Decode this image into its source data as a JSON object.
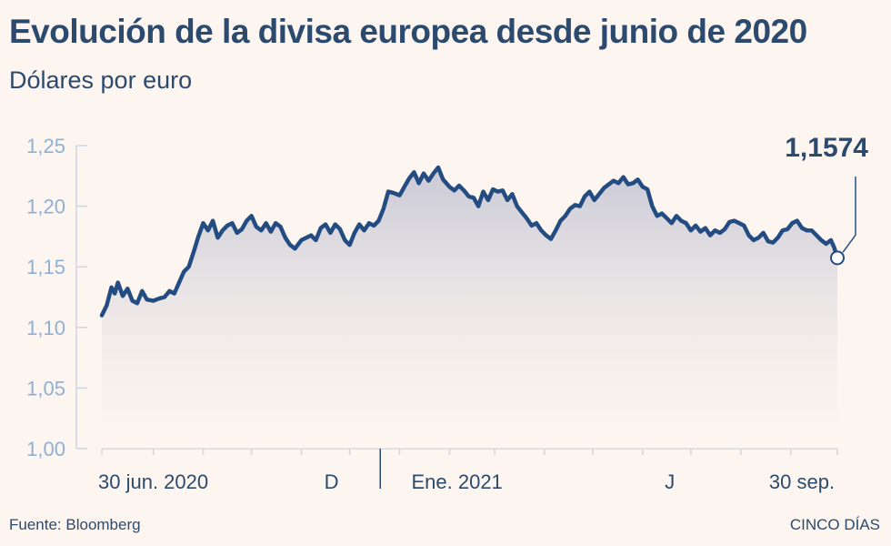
{
  "header": {
    "title": "Evolución de la divisa europea desde junio de 2020",
    "subtitle": "Dólares por euro"
  },
  "footer": {
    "source": "Fuente: Bloomberg",
    "brand": "CINCO DÍAS"
  },
  "colors": {
    "line": "#234d82",
    "axis_text": "#8fb0d5",
    "text": "#2c4a6e",
    "background": "#fdf5ef"
  },
  "chart_data": {
    "type": "area",
    "title": "Evolución de la divisa europea desde junio de 2020",
    "ylabel": "Dólares por euro",
    "ylim": [
      1.0,
      1.25
    ],
    "yticks": [
      "1,25",
      "1,20",
      "1,15",
      "1,10",
      "1,05",
      "1,00"
    ],
    "ytick_values": [
      1.25,
      1.2,
      1.15,
      1.1,
      1.05,
      1.0
    ],
    "x_range": [
      "2020-06-30",
      "2021-09-30"
    ],
    "xtick_labels": [
      {
        "date": "2020-06-30",
        "label": "30 jun. 2020"
      },
      {
        "date": "2020-12-01",
        "label": "D"
      },
      {
        "date": "2021-01-01",
        "label": "Ene. 2021"
      },
      {
        "date": "2021-06-01",
        "label": "J"
      },
      {
        "date": "2021-09-30",
        "label": "30 sep."
      }
    ],
    "minor_ticks": [
      "2020-08-01",
      "2020-09-01",
      "2020-10-01",
      "2020-11-01",
      "2020-12-01",
      "2021-01-01",
      "2021-02-01",
      "2021-03-01",
      "2021-04-01",
      "2021-05-01",
      "2021-06-01",
      "2021-07-01",
      "2021-08-01",
      "2021-09-01",
      "2021-09-30"
    ],
    "grid": false,
    "last_value_label": "1,1574",
    "series": [
      {
        "points": [
          [
            "2020-06-30",
            1.11
          ],
          [
            "2020-07-03",
            1.118
          ],
          [
            "2020-07-06",
            1.133
          ],
          [
            "2020-07-08",
            1.128
          ],
          [
            "2020-07-10",
            1.137
          ],
          [
            "2020-07-13",
            1.126
          ],
          [
            "2020-07-16",
            1.132
          ],
          [
            "2020-07-19",
            1.122
          ],
          [
            "2020-07-22",
            1.12
          ],
          [
            "2020-07-25",
            1.13
          ],
          [
            "2020-07-28",
            1.123
          ],
          [
            "2020-08-01",
            1.122
          ],
          [
            "2020-08-05",
            1.124
          ],
          [
            "2020-08-08",
            1.125
          ],
          [
            "2020-08-11",
            1.13
          ],
          [
            "2020-08-14",
            1.128
          ],
          [
            "2020-08-17",
            1.137
          ],
          [
            "2020-08-20",
            1.146
          ],
          [
            "2020-08-23",
            1.15
          ],
          [
            "2020-08-26",
            1.162
          ],
          [
            "2020-08-29",
            1.175
          ],
          [
            "2020-09-01",
            1.186
          ],
          [
            "2020-09-04",
            1.18
          ],
          [
            "2020-09-07",
            1.188
          ],
          [
            "2020-09-10",
            1.174
          ],
          [
            "2020-09-13",
            1.18
          ],
          [
            "2020-09-16",
            1.184
          ],
          [
            "2020-09-19",
            1.186
          ],
          [
            "2020-09-22",
            1.178
          ],
          [
            "2020-09-25",
            1.181
          ],
          [
            "2020-09-28",
            1.188
          ],
          [
            "2020-10-01",
            1.192
          ],
          [
            "2020-10-04",
            1.183
          ],
          [
            "2020-10-07",
            1.18
          ],
          [
            "2020-10-10",
            1.186
          ],
          [
            "2020-10-13",
            1.179
          ],
          [
            "2020-10-16",
            1.186
          ],
          [
            "2020-10-19",
            1.183
          ],
          [
            "2020-10-22",
            1.174
          ],
          [
            "2020-10-25",
            1.168
          ],
          [
            "2020-10-28",
            1.165
          ],
          [
            "2020-11-01",
            1.172
          ],
          [
            "2020-11-04",
            1.174
          ],
          [
            "2020-11-07",
            1.176
          ],
          [
            "2020-11-10",
            1.172
          ],
          [
            "2020-11-13",
            1.182
          ],
          [
            "2020-11-16",
            1.185
          ],
          [
            "2020-11-19",
            1.178
          ],
          [
            "2020-11-22",
            1.185
          ],
          [
            "2020-11-25",
            1.181
          ],
          [
            "2020-11-28",
            1.172
          ],
          [
            "2020-12-01",
            1.168
          ],
          [
            "2020-12-04",
            1.178
          ],
          [
            "2020-12-07",
            1.185
          ],
          [
            "2020-12-10",
            1.18
          ],
          [
            "2020-12-13",
            1.186
          ],
          [
            "2020-12-16",
            1.184
          ],
          [
            "2020-12-19",
            1.188
          ],
          [
            "2020-12-22",
            1.198
          ],
          [
            "2020-12-25",
            1.212
          ],
          [
            "2020-12-28",
            1.211
          ],
          [
            "2021-01-01",
            1.209
          ],
          [
            "2021-01-04",
            1.216
          ],
          [
            "2021-01-07",
            1.223
          ],
          [
            "2021-01-10",
            1.228
          ],
          [
            "2021-01-13",
            1.219
          ],
          [
            "2021-01-16",
            1.227
          ],
          [
            "2021-01-19",
            1.221
          ],
          [
            "2021-01-22",
            1.227
          ],
          [
            "2021-01-25",
            1.232
          ],
          [
            "2021-01-28",
            1.222
          ],
          [
            "2021-02-01",
            1.216
          ],
          [
            "2021-02-04",
            1.213
          ],
          [
            "2021-02-07",
            1.217
          ],
          [
            "2021-02-10",
            1.213
          ],
          [
            "2021-02-13",
            1.208
          ],
          [
            "2021-02-16",
            1.207
          ],
          [
            "2021-02-19",
            1.2
          ],
          [
            "2021-02-22",
            1.212
          ],
          [
            "2021-02-25",
            1.205
          ],
          [
            "2021-02-28",
            1.214
          ],
          [
            "2021-03-03",
            1.212
          ],
          [
            "2021-03-06",
            1.213
          ],
          [
            "2021-03-09",
            1.205
          ],
          [
            "2021-03-12",
            1.21
          ],
          [
            "2021-03-15",
            1.2
          ],
          [
            "2021-03-18",
            1.195
          ],
          [
            "2021-03-21",
            1.19
          ],
          [
            "2021-03-24",
            1.184
          ],
          [
            "2021-03-27",
            1.186
          ],
          [
            "2021-03-30",
            1.18
          ],
          [
            "2021-04-02",
            1.176
          ],
          [
            "2021-04-05",
            1.173
          ],
          [
            "2021-04-08",
            1.18
          ],
          [
            "2021-04-11",
            1.188
          ],
          [
            "2021-04-14",
            1.192
          ],
          [
            "2021-04-17",
            1.198
          ],
          [
            "2021-04-20",
            1.201
          ],
          [
            "2021-04-23",
            1.2
          ],
          [
            "2021-04-26",
            1.208
          ],
          [
            "2021-04-29",
            1.212
          ],
          [
            "2021-05-02",
            1.205
          ],
          [
            "2021-05-05",
            1.21
          ],
          [
            "2021-05-08",
            1.215
          ],
          [
            "2021-05-11",
            1.218
          ],
          [
            "2021-05-14",
            1.221
          ],
          [
            "2021-05-17",
            1.219
          ],
          [
            "2021-05-20",
            1.224
          ],
          [
            "2021-05-23",
            1.218
          ],
          [
            "2021-05-26",
            1.219
          ],
          [
            "2021-05-29",
            1.222
          ],
          [
            "2021-06-01",
            1.216
          ],
          [
            "2021-06-04",
            1.214
          ],
          [
            "2021-06-07",
            1.2
          ],
          [
            "2021-06-10",
            1.192
          ],
          [
            "2021-06-13",
            1.194
          ],
          [
            "2021-06-16",
            1.19
          ],
          [
            "2021-06-19",
            1.186
          ],
          [
            "2021-06-22",
            1.192
          ],
          [
            "2021-06-25",
            1.188
          ],
          [
            "2021-06-28",
            1.186
          ],
          [
            "2021-07-01",
            1.18
          ],
          [
            "2021-07-04",
            1.184
          ],
          [
            "2021-07-07",
            1.179
          ],
          [
            "2021-07-10",
            1.182
          ],
          [
            "2021-07-13",
            1.176
          ],
          [
            "2021-07-16",
            1.18
          ],
          [
            "2021-07-19",
            1.178
          ],
          [
            "2021-07-22",
            1.181
          ],
          [
            "2021-07-25",
            1.187
          ],
          [
            "2021-07-28",
            1.188
          ],
          [
            "2021-07-31",
            1.186
          ],
          [
            "2021-08-03",
            1.184
          ],
          [
            "2021-08-06",
            1.176
          ],
          [
            "2021-08-09",
            1.172
          ],
          [
            "2021-08-12",
            1.174
          ],
          [
            "2021-08-15",
            1.178
          ],
          [
            "2021-08-18",
            1.171
          ],
          [
            "2021-08-21",
            1.17
          ],
          [
            "2021-08-24",
            1.174
          ],
          [
            "2021-08-27",
            1.18
          ],
          [
            "2021-08-30",
            1.181
          ],
          [
            "2021-09-02",
            1.186
          ],
          [
            "2021-09-05",
            1.188
          ],
          [
            "2021-09-08",
            1.182
          ],
          [
            "2021-09-11",
            1.18
          ],
          [
            "2021-09-14",
            1.18
          ],
          [
            "2021-09-17",
            1.176
          ],
          [
            "2021-09-20",
            1.172
          ],
          [
            "2021-09-23",
            1.169
          ],
          [
            "2021-09-26",
            1.172
          ],
          [
            "2021-09-28",
            1.166
          ],
          [
            "2021-09-30",
            1.1574
          ]
        ]
      }
    ]
  }
}
